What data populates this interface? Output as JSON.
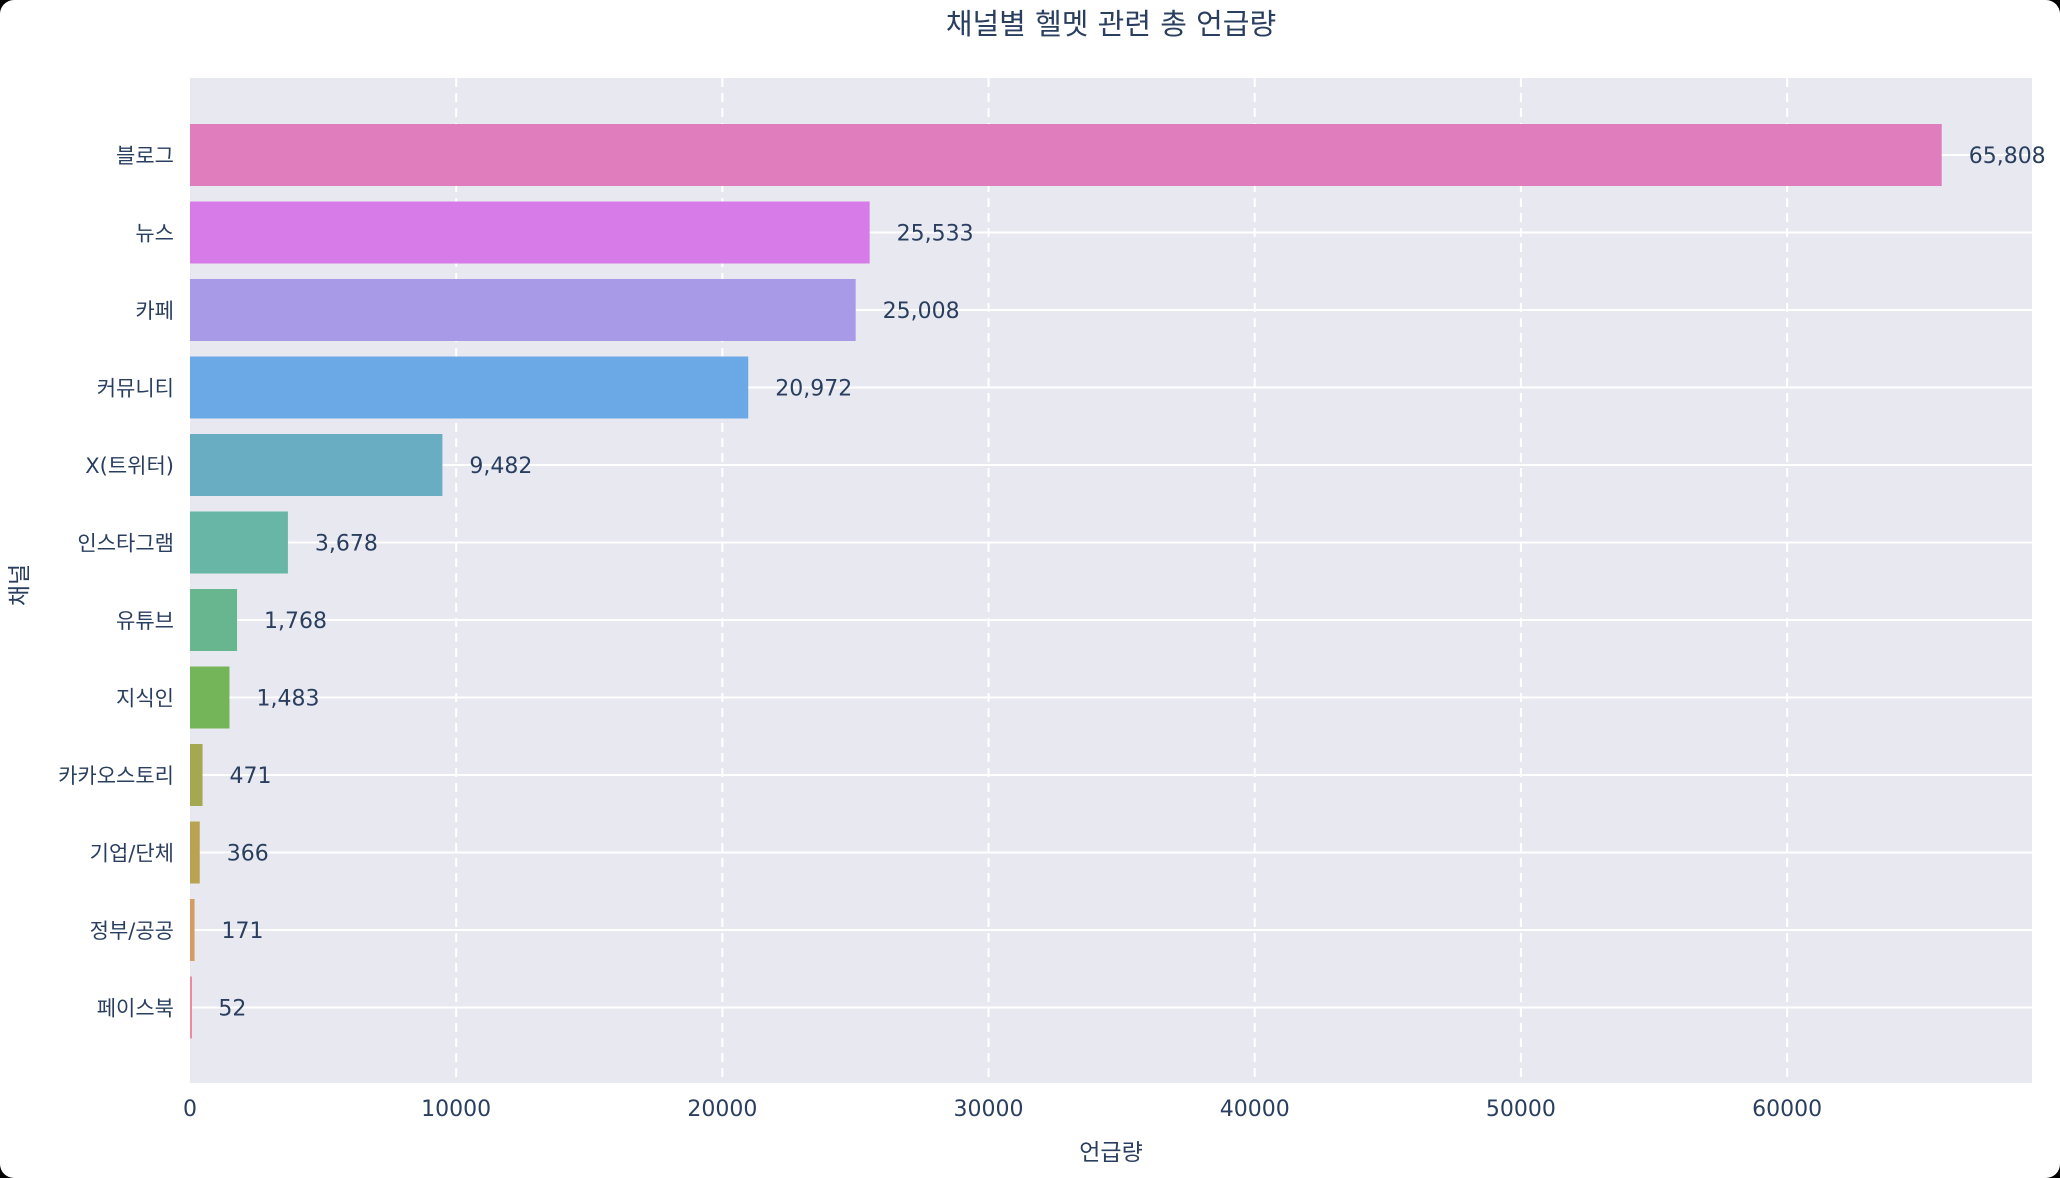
{
  "chart_data": {
    "type": "bar",
    "orientation": "horizontal",
    "title": "채널별 헬멧 관련 총 언급량",
    "xlabel": "언급량",
    "ylabel": "채널",
    "categories": [
      "블로그",
      "뉴스",
      "카페",
      "커뮤니티",
      "X(트위터)",
      "인스타그램",
      "유튜브",
      "지식인",
      "카카오스토리",
      "기업/단체",
      "정부/공공",
      "페이스북"
    ],
    "values": [
      65808,
      25533,
      25008,
      20972,
      9482,
      3678,
      1768,
      1483,
      471,
      366,
      171,
      52
    ],
    "value_labels": [
      "65,808",
      "25,533",
      "25,008",
      "20,972",
      "9,482",
      "3,678",
      "1,768",
      "1,483",
      "471",
      "366",
      "171",
      "52"
    ],
    "colors": [
      "#e07dbd",
      "#d77be9",
      "#a99ae8",
      "#6aa8e6",
      "#69adc2",
      "#68b6a6",
      "#67b68f",
      "#74b55a",
      "#a4a850",
      "#b9a252",
      "#d59c61",
      "#ee8aa0"
    ],
    "xlim": [
      0,
      69200
    ],
    "xticks": [
      0,
      10000,
      20000,
      30000,
      40000,
      50000,
      60000
    ],
    "xtick_labels": [
      "0",
      "10000",
      "20000",
      "30000",
      "40000",
      "50000",
      "60000"
    ],
    "grid": true,
    "legend": false
  }
}
